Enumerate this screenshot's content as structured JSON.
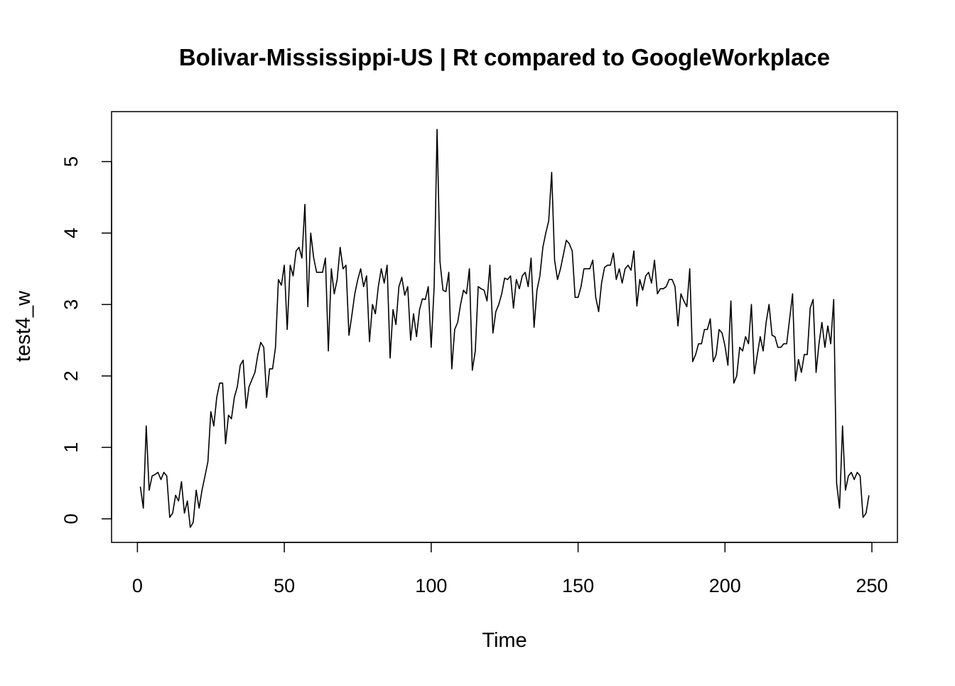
{
  "chart_data": {
    "type": "line",
    "title": "Bolivar-Mississippi-US | Rt compared to GoogleWorkplace",
    "xlabel": "Time",
    "ylabel": "test4_w",
    "xlim": [
      -8.8,
      258.7
    ],
    "ylim": [
      -0.33,
      5.7
    ],
    "xticks": [
      0,
      50,
      100,
      150,
      200,
      250
    ],
    "yticks": [
      0,
      1,
      2,
      3,
      4,
      5
    ],
    "grid": false,
    "legend": "none",
    "line_color": "#000000",
    "series": [
      {
        "x_start": 1,
        "values": [
          0.45,
          0.15,
          1.3,
          0.4,
          0.6,
          0.62,
          0.65,
          0.55,
          0.65,
          0.6,
          0.02,
          0.08,
          0.33,
          0.25,
          0.52,
          0.08,
          0.25,
          -0.12,
          -0.05,
          0.4,
          0.15,
          0.4,
          0.6,
          0.8,
          1.5,
          1.3,
          1.7,
          1.9,
          1.9,
          1.05,
          1.45,
          1.4,
          1.7,
          1.85,
          2.15,
          2.22,
          1.55,
          1.85,
          1.95,
          2.05,
          2.3,
          2.47,
          2.4,
          1.7,
          2.1,
          2.1,
          2.4,
          3.35,
          3.27,
          3.55,
          2.65,
          3.55,
          3.4,
          3.75,
          3.8,
          3.65,
          4.4,
          2.97,
          4.0,
          3.65,
          3.45,
          3.45,
          3.45,
          3.65,
          2.35,
          3.5,
          3.15,
          3.35,
          3.8,
          3.5,
          3.55,
          2.57,
          2.85,
          3.15,
          3.35,
          3.5,
          3.25,
          3.4,
          2.48,
          3.0,
          2.87,
          3.25,
          3.5,
          3.3,
          3.55,
          2.25,
          2.93,
          2.72,
          3.25,
          3.38,
          3.13,
          3.25,
          2.5,
          2.87,
          2.55,
          2.92,
          3.08,
          3.07,
          3.25,
          2.4,
          3.25,
          5.45,
          3.6,
          3.2,
          3.18,
          3.45,
          2.1,
          2.65,
          2.75,
          3.0,
          3.2,
          3.15,
          3.5,
          2.08,
          2.35,
          3.25,
          3.22,
          3.2,
          3.05,
          3.55,
          2.6,
          2.9,
          3.0,
          3.15,
          3.37,
          3.35,
          3.4,
          2.95,
          3.35,
          3.22,
          3.4,
          3.45,
          3.25,
          3.65,
          2.68,
          3.2,
          3.4,
          3.8,
          4.0,
          4.17,
          4.85,
          3.62,
          3.35,
          3.5,
          3.7,
          3.9,
          3.85,
          3.75,
          3.1,
          3.1,
          3.25,
          3.5,
          3.5,
          3.5,
          3.62,
          3.1,
          2.9,
          3.3,
          3.52,
          3.55,
          3.55,
          3.72,
          3.35,
          3.5,
          3.3,
          3.5,
          3.55,
          3.48,
          3.75,
          2.98,
          3.35,
          3.2,
          3.4,
          3.45,
          3.3,
          3.62,
          3.15,
          3.22,
          3.22,
          3.25,
          3.35,
          3.35,
          3.25,
          2.7,
          3.15,
          3.05,
          2.97,
          3.5,
          2.2,
          2.3,
          2.45,
          2.45,
          2.65,
          2.65,
          2.8,
          2.2,
          2.3,
          2.65,
          2.6,
          2.42,
          2.15,
          3.05,
          1.9,
          2.0,
          2.4,
          2.35,
          2.55,
          2.45,
          3.0,
          2.03,
          2.3,
          2.55,
          2.35,
          2.75,
          3.0,
          2.57,
          2.55,
          2.4,
          2.4,
          2.45,
          2.45,
          2.8,
          3.15,
          1.93,
          2.23,
          2.05,
          2.3,
          2.3,
          2.95,
          3.07,
          2.05,
          2.45,
          2.75,
          2.4,
          2.7,
          2.45,
          3.07,
          0.5,
          0.15,
          1.3,
          0.4,
          0.6,
          0.65,
          0.55,
          0.65,
          0.6,
          0.02,
          0.08,
          0.33
        ]
      }
    ]
  }
}
